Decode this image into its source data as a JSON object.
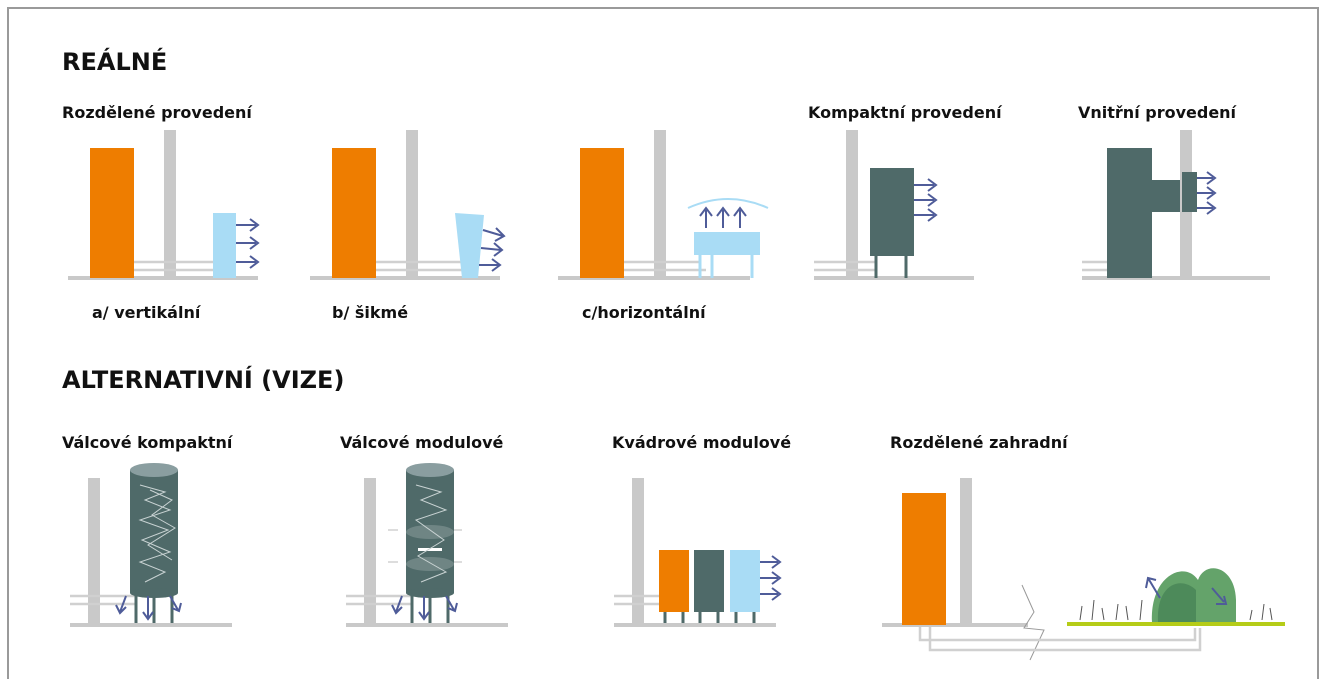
{
  "sections": [
    {
      "title": "REÁLNÉ",
      "groups": [
        "Rozdělené provedení",
        "Kompaktní provedení",
        "Vnitřní provedení"
      ],
      "variants": [
        "a/ vertikální",
        "b/ šikmé",
        "c/horizontální"
      ]
    },
    {
      "title": "ALTERNATIVNÍ (VIZE)",
      "groups": [
        "Válcové kompaktní",
        "Válcové modulové",
        "Kvádrové modulové",
        "Rozdělené zahradní"
      ]
    }
  ]
}
